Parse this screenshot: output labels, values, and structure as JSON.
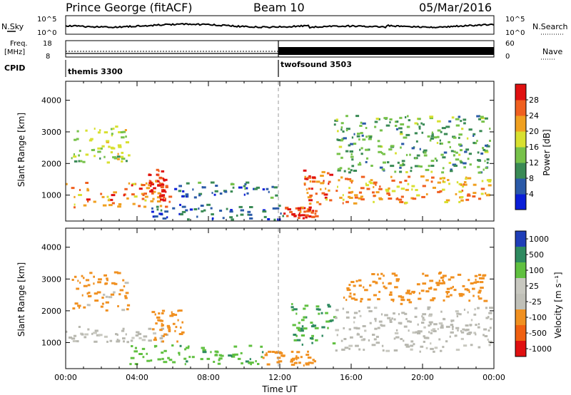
{
  "header": {
    "station": "Prince George (fitACF)",
    "beam": "Beam 10",
    "date": "05/Mar/2016"
  },
  "top_panels": {
    "nsky_label": "N.Sky",
    "nsky_ticks": [
      "10^5",
      "10^0"
    ],
    "nsearch_label": "N.Search",
    "nsearch_ticks": [
      "10^5",
      "10^0"
    ],
    "freq_label_1": "Freq.",
    "freq_label_2": "[MHz]",
    "freq_ticks": [
      "18",
      "8"
    ],
    "nave_label": "Nave",
    "nave_ticks": [
      "60",
      "0"
    ],
    "cpid_label": "CPID",
    "programs": [
      {
        "name": "themis 3300",
        "start_hour": 0,
        "end_hour": 12
      },
      {
        "name": "twofsound 3503",
        "start_hour": 12,
        "end_hour": 24
      }
    ]
  },
  "colors": {
    "power_scale": [
      "#0a1ed8",
      "#2b5aa8",
      "#3a8a55",
      "#77c24a",
      "#d8e030",
      "#f0a020",
      "#f06020",
      "#e01010"
    ],
    "velocity_scale": [
      "#e01010",
      "#f06010",
      "#f09020",
      "#c0c0b8",
      "#c8c8c0",
      "#60c040",
      "#2e8a60",
      "#1f3eb8"
    ],
    "ground_scatter": "#b8b8b0"
  },
  "chart_data": [
    {
      "type": "heatmap",
      "panel": "power",
      "xlabel": "",
      "ylabel": "Slant Range [km]",
      "xlim_hours": [
        0,
        24
      ],
      "ylim_km": [
        180,
        4600
      ],
      "yticks": [
        "1000",
        "2000",
        "3000",
        "4000"
      ],
      "colorbar_label": "Power [dB]",
      "colorbar_ticks": [
        "4",
        "8",
        "12",
        "16",
        "20",
        "24",
        "28"
      ],
      "colorbar_range": [
        0,
        32
      ],
      "features": [
        {
          "hour_start": 0.0,
          "hour_end": 5.8,
          "range_start_km": 600,
          "range_end_km": 1400,
          "level_db": 24
        },
        {
          "hour_start": 0.3,
          "hour_end": 3.5,
          "range_start_km": 2000,
          "range_end_km": 3200,
          "level_db": 16
        },
        {
          "hour_start": 4.6,
          "hour_end": 5.6,
          "range_start_km": 800,
          "range_end_km": 1800,
          "level_db": 28
        },
        {
          "hour_start": 6.0,
          "hour_end": 11.9,
          "range_start_km": 900,
          "range_end_km": 1400,
          "level_db": 8
        },
        {
          "hour_start": 4.8,
          "hour_end": 12.2,
          "range_start_km": 200,
          "range_end_km": 700,
          "level_db": 6
        },
        {
          "hour_start": 12.0,
          "hour_end": 14.0,
          "range_start_km": 250,
          "range_end_km": 600,
          "level_db": 28
        },
        {
          "hour_start": 13.3,
          "hour_end": 14.8,
          "range_start_km": 700,
          "range_end_km": 1800,
          "level_db": 26
        },
        {
          "hour_start": 14.5,
          "hour_end": 23.8,
          "range_start_km": 700,
          "range_end_km": 1600,
          "level_db": 22
        },
        {
          "hour_start": 15.0,
          "hour_end": 23.8,
          "range_start_km": 1700,
          "range_end_km": 3500,
          "level_db": 12
        }
      ]
    },
    {
      "type": "heatmap",
      "panel": "velocity",
      "xlabel": "Time UT",
      "ylabel": "Slant Range [km]",
      "xlim_hours": [
        0,
        24
      ],
      "ylim_km": [
        180,
        4600
      ],
      "yticks": [
        "1000",
        "2000",
        "3000",
        "4000"
      ],
      "xticks": [
        "00:00",
        "04:00",
        "08:00",
        "12:00",
        "16:00",
        "20:00",
        "00:00"
      ],
      "colorbar_label": "Velocity [m s⁻¹]",
      "colorbar_ticks": [
        "1000",
        "500",
        "100",
        "25",
        "-25",
        "-100",
        "-500",
        "-1000"
      ],
      "features": [
        {
          "hour_start": 0.0,
          "hour_end": 6.0,
          "range_start_km": 1000,
          "range_end_km": 1500,
          "velocity_ms": 0
        },
        {
          "hour_start": 0.3,
          "hour_end": 3.5,
          "range_start_km": 2000,
          "range_end_km": 3200,
          "velocity_ms": -150
        },
        {
          "hour_start": 4.8,
          "hour_end": 6.5,
          "range_start_km": 1000,
          "range_end_km": 2000,
          "velocity_ms": -300
        },
        {
          "hour_start": 3.5,
          "hour_end": 11.0,
          "range_start_km": 300,
          "range_end_km": 900,
          "velocity_ms": 80
        },
        {
          "hour_start": 11.0,
          "hour_end": 14.0,
          "range_start_km": 250,
          "range_end_km": 700,
          "velocity_ms": -200
        },
        {
          "hour_start": 12.5,
          "hour_end": 15.0,
          "range_start_km": 900,
          "range_end_km": 2200,
          "velocity_ms": 100
        },
        {
          "hour_start": 15.0,
          "hour_end": 23.8,
          "range_start_km": 700,
          "range_end_km": 2100,
          "velocity_ms": 0
        },
        {
          "hour_start": 15.5,
          "hour_end": 23.5,
          "range_start_km": 2200,
          "range_end_km": 3200,
          "velocity_ms": -200
        }
      ]
    }
  ]
}
